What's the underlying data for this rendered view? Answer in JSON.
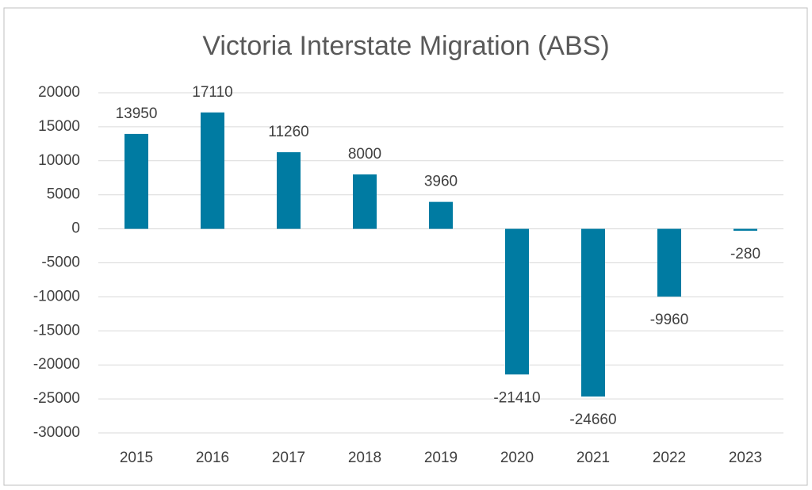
{
  "chart_data": {
    "type": "bar",
    "title": "Victoria Interstate Migration (ABS)",
    "categories": [
      "2015",
      "2016",
      "2017",
      "2018",
      "2019",
      "2020",
      "2021",
      "2022",
      "2023"
    ],
    "values": [
      13950,
      17110,
      11260,
      8000,
      3960,
      -21410,
      -24660,
      -9960,
      -280
    ],
    "color": "#007ba2",
    "ylim": [
      -30000,
      20000
    ],
    "yticks": [
      -30000,
      -25000,
      -20000,
      -15000,
      -10000,
      -5000,
      0,
      5000,
      10000,
      15000,
      20000
    ],
    "grid": true
  }
}
